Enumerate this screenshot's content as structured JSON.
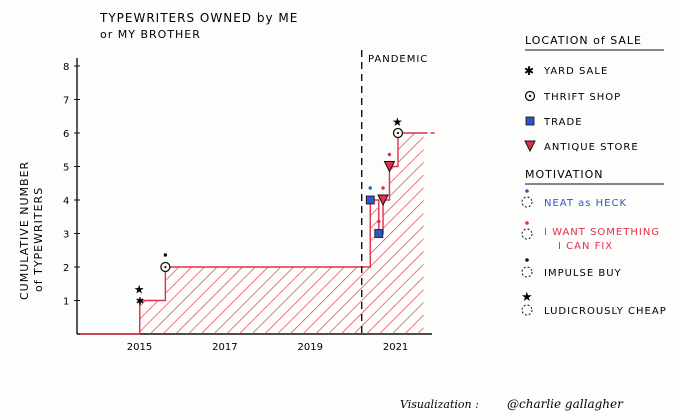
{
  "chart_data": {
    "type": "line",
    "title_line1": "TYPEWRITERS OWNED by ME",
    "title_line2": "or MY BROTHER",
    "ylabel_line1": "CUMULATIVE NUMBER",
    "ylabel_line2": "of TYPEWRITERS",
    "ylim": [
      0,
      8
    ],
    "yticks": [
      1,
      2,
      3,
      4,
      5,
      6,
      7,
      8
    ],
    "xticks": [
      {
        "label": "2015",
        "x": 2015
      },
      {
        "label": "2017",
        "x": 2017
      },
      {
        "label": "2019",
        "x": 2019
      },
      {
        "label": "2021",
        "x": 2021
      }
    ],
    "xlim": [
      2013.6,
      2021.8
    ],
    "annotation": {
      "label": "PANDEMIC",
      "x": 2020.2
    },
    "step_series": [
      {
        "x": 2013.6,
        "y": 0
      },
      {
        "x": 2015.0,
        "y": 1
      },
      {
        "x": 2015.6,
        "y": 2
      },
      {
        "x": 2020.4,
        "y": 4
      },
      {
        "x": 2020.6,
        "y": 3
      },
      {
        "x": 2020.7,
        "y": 4
      },
      {
        "x": 2020.85,
        "y": 5
      },
      {
        "x": 2021.05,
        "y": 6
      },
      {
        "x": 2021.65,
        "y": 6
      }
    ],
    "events": [
      {
        "x": 2015.0,
        "y": 1,
        "location": "yard",
        "motivation": "cheap"
      },
      {
        "x": 2015.6,
        "y": 2,
        "location": "thrift",
        "motivation": "impulse"
      },
      {
        "x": 2020.4,
        "y": 4,
        "location": "trade",
        "motivation": "neat"
      },
      {
        "x": 2020.6,
        "y": 3,
        "location": "trade",
        "motivation": "fix"
      },
      {
        "x": 2020.7,
        "y": 4,
        "location": "antique",
        "motivation": "fix"
      },
      {
        "x": 2020.85,
        "y": 5,
        "location": "antique",
        "motivation": "fix"
      },
      {
        "x": 2021.05,
        "y": 6,
        "location": "thrift",
        "motivation": "cheap"
      }
    ],
    "colors": {
      "line": "#e0304a",
      "hatch": "#e0304a",
      "neat": "#2b59c3",
      "fix": "#e0304a",
      "ink": "#111111"
    }
  },
  "legend": {
    "location_title": "LOCATION of SALE",
    "location_items": [
      {
        "key": "yard",
        "label": "YARD SALE"
      },
      {
        "key": "thrift",
        "label": "THRIFT SHOP"
      },
      {
        "key": "trade",
        "label": "TRADE"
      },
      {
        "key": "antique",
        "label": "ANTIQUE STORE"
      }
    ],
    "motivation_title": "MOTIVATION",
    "motivation_items": [
      {
        "key": "neat",
        "label": "NEAT as HECK",
        "color": "#2b59c3"
      },
      {
        "key": "fix",
        "label": "I WANT SOMETHING",
        "label2": "I CAN FIX",
        "color": "#e0304a"
      },
      {
        "key": "impulse",
        "label": "IMPULSE BUY",
        "color": "#111111"
      },
      {
        "key": "cheap",
        "label": "LUDICROUSLY CHEAP",
        "color": "#111111"
      }
    ]
  },
  "footer": {
    "label": "Visualization :",
    "handle": "@charlie gallagher"
  }
}
